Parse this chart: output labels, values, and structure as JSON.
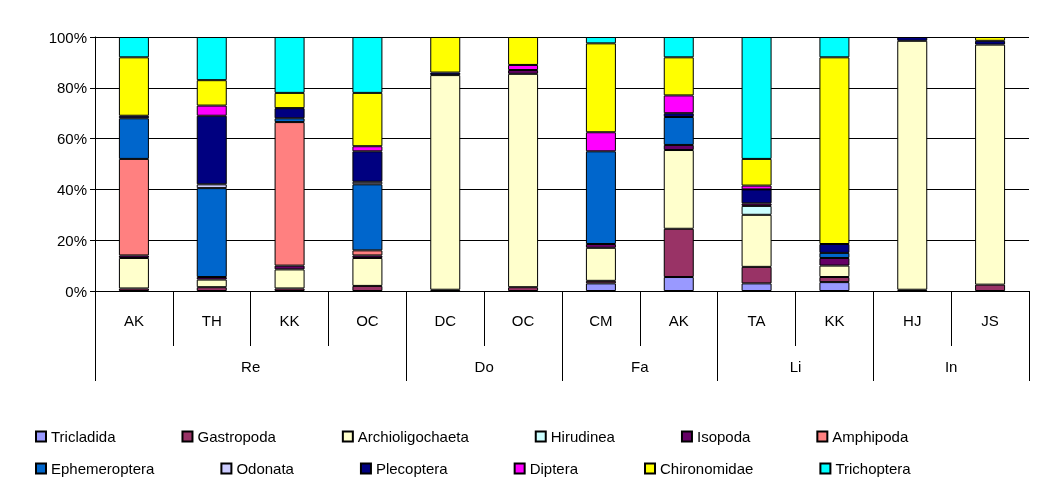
{
  "chart_data": {
    "type": "bar",
    "stacked": true,
    "categories": [
      "AK",
      "TH",
      "KK",
      "OC",
      "DC",
      "OC",
      "CM",
      "AK",
      "TA",
      "KK",
      "HJ",
      "JS"
    ],
    "annotations": [
      "Re",
      "Do",
      "Fa",
      "Li",
      "In"
    ],
    "series": [
      {
        "name": "Tricladida",
        "color": "#9999ff",
        "values": [
          null,
          null,
          null,
          null,
          null,
          null,
          3,
          5.5,
          3,
          3.5,
          null,
          null
        ]
      },
      {
        "name": "Gastropoda",
        "color": "#993366",
        "values": [
          1,
          1.5,
          1,
          2,
          0.5,
          1.5,
          1,
          19,
          6.5,
          2,
          0.5,
          2.5
        ]
      },
      {
        "name": "Archioligochaeta",
        "color": "#ffffcc",
        "values": [
          12,
          3,
          7.5,
          11,
          84.5,
          84,
          13,
          31,
          20.5,
          4.5,
          98,
          94.5
        ]
      },
      {
        "name": "Hirudinea",
        "color": "#ccffff",
        "values": [
          null,
          null,
          null,
          null,
          null,
          null,
          null,
          null,
          3.5,
          null,
          null,
          null
        ]
      },
      {
        "name": "Isopoda",
        "color": "#660066",
        "values": [
          1,
          1,
          1.5,
          1,
          null,
          1.5,
          1.5,
          2,
          1,
          3,
          null,
          null
        ]
      },
      {
        "name": "Amphipoda",
        "color": "#ff8080",
        "values": [
          38,
          null,
          56.5,
          2,
          null,
          null,
          null,
          null,
          null,
          null,
          null,
          null
        ]
      },
      {
        "name": "Ephemeroptera",
        "color": "#0066cc",
        "values": [
          16,
          35,
          1.5,
          26,
          null,
          null,
          36.5,
          11,
          null,
          2,
          null,
          null
        ]
      },
      {
        "name": "Odonata",
        "color": "#ccccff",
        "values": [
          null,
          1.5,
          null,
          1,
          null,
          null,
          null,
          null,
          null,
          null,
          null,
          null
        ]
      },
      {
        "name": "Plecoptera",
        "color": "#000080",
        "values": [
          1,
          27,
          4,
          12,
          1,
          null,
          null,
          1.5,
          5.5,
          3.5,
          1.5,
          1.5
        ]
      },
      {
        "name": "Diptera",
        "color": "#ff00ff",
        "values": [
          null,
          4,
          null,
          2,
          null,
          2,
          7.5,
          7,
          1.5,
          null,
          null,
          null
        ]
      },
      {
        "name": "Chironomidae",
        "color": "#ffff00",
        "values": [
          23,
          10,
          6,
          21,
          14,
          11,
          35,
          15,
          10.5,
          73.5,
          null,
          1.5
        ]
      },
      {
        "name": "Trichoptera",
        "color": "#00ffff",
        "values": [
          8,
          17,
          22,
          22,
          null,
          null,
          2.5,
          8,
          48,
          8,
          null,
          null
        ]
      }
    ],
    "ylim": [
      0,
      100
    ],
    "yticks": [
      {
        "value": 0,
        "label": "0%"
      },
      {
        "value": 20,
        "label": "20%"
      },
      {
        "value": 40,
        "label": "40%"
      },
      {
        "value": 60,
        "label": "60%"
      },
      {
        "value": 80,
        "label": "80%"
      },
      {
        "value": 100,
        "label": "100%"
      }
    ],
    "grid": "y",
    "legend": "bottom"
  }
}
